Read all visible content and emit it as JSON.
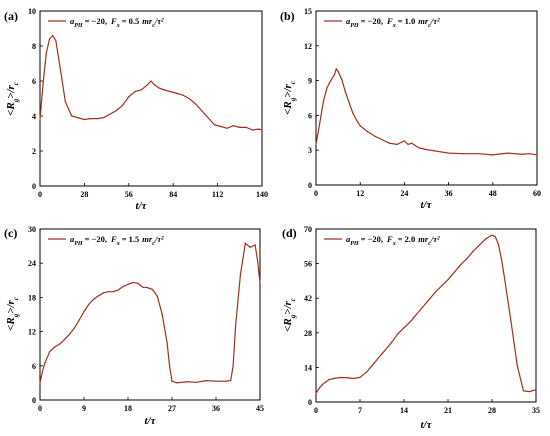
{
  "series_color": "#a0311f",
  "chart_data": [
    {
      "type": "line",
      "panel_label": "(a)",
      "legend": "aPH = −20, Fx = 0.5 mrc/τ²",
      "legend_parts": {
        "a_sub": "PH",
        "a_val": "= −20,",
        "f_sub": "x",
        "f_val": "= 0.5",
        "unit": "mr",
        "unit_sub": "c",
        "unit_tail": "/τ²"
      },
      "xlabel": "t/τ",
      "ylabel": "<Rg>/rc",
      "xlim": [
        0,
        140
      ],
      "ylim": [
        0,
        10
      ],
      "xticks": [
        0,
        28,
        56,
        84,
        112,
        140
      ],
      "yticks": [
        0,
        2,
        4,
        6,
        8,
        10
      ],
      "x": [
        0,
        2,
        4,
        6,
        8,
        10,
        13,
        16,
        20,
        24,
        28,
        32,
        36,
        40,
        44,
        48,
        52,
        56,
        60,
        64,
        68,
        70,
        72,
        75,
        78,
        82,
        86,
        90,
        94,
        98,
        102,
        106,
        110,
        114,
        118,
        122,
        126,
        130,
        134,
        138,
        140
      ],
      "y": [
        3.8,
        5.9,
        7.6,
        8.4,
        8.6,
        8.3,
        6.6,
        4.8,
        4.0,
        3.9,
        3.8,
        3.85,
        3.85,
        3.9,
        4.1,
        4.3,
        4.6,
        5.1,
        5.4,
        5.5,
        5.8,
        6.0,
        5.8,
        5.6,
        5.5,
        5.4,
        5.3,
        5.2,
        5.0,
        4.7,
        4.3,
        3.9,
        3.5,
        3.4,
        3.3,
        3.45,
        3.35,
        3.35,
        3.2,
        3.25,
        3.2
      ]
    },
    {
      "type": "line",
      "panel_label": "(b)",
      "legend": "aPH = −20, Fx = 1.0 mrc/τ²",
      "legend_parts": {
        "a_sub": "PH",
        "a_val": "= −20,",
        "f_sub": "x",
        "f_val": "= 1.0",
        "unit": "mr",
        "unit_sub": "c",
        "unit_tail": "/τ²"
      },
      "xlabel": "t/τ",
      "ylabel": "<Rg>/rc",
      "xlim": [
        0,
        60
      ],
      "ylim": [
        0,
        15
      ],
      "xticks": [
        0,
        12,
        24,
        36,
        48,
        60
      ],
      "yticks": [
        0,
        3,
        6,
        9,
        12,
        15
      ],
      "x": [
        0,
        0.5,
        1,
        2,
        3,
        4,
        5,
        5.5,
        6,
        7,
        8,
        9,
        10,
        11,
        12,
        14,
        16,
        18,
        20,
        22,
        24,
        25,
        26,
        28,
        30,
        32,
        34,
        36,
        40,
        44,
        48,
        52,
        56,
        58,
        60
      ],
      "y": [
        3.5,
        4.4,
        5.3,
        7.2,
        8.4,
        9.0,
        9.5,
        10.0,
        9.8,
        9.1,
        8.0,
        7.1,
        6.2,
        5.6,
        5.1,
        4.6,
        4.2,
        3.9,
        3.6,
        3.5,
        3.8,
        3.5,
        3.6,
        3.2,
        3.05,
        2.95,
        2.85,
        2.75,
        2.7,
        2.7,
        2.6,
        2.75,
        2.65,
        2.7,
        2.6
      ]
    },
    {
      "type": "line",
      "panel_label": "(c)",
      "legend": "aPH = −20, Fx = 1.5 mrc/τ²",
      "legend_parts": {
        "a_sub": "PH",
        "a_val": "= −20,",
        "f_sub": "x",
        "f_val": "= 1.5",
        "unit": "mr",
        "unit_sub": "c",
        "unit_tail": "/τ²"
      },
      "xlabel": "t/τ",
      "ylabel": "<Rg>/rc",
      "xlim": [
        0,
        45
      ],
      "ylim": [
        0,
        30
      ],
      "xticks": [
        0,
        9,
        18,
        27,
        36,
        45
      ],
      "yticks": [
        0,
        6,
        12,
        18,
        24,
        30
      ],
      "x": [
        0,
        0.5,
        1,
        2,
        3,
        4,
        5,
        6,
        7,
        8,
        9,
        10,
        11,
        12,
        13,
        14,
        15,
        16,
        17,
        18,
        19,
        20,
        21,
        22,
        23,
        24,
        25,
        26,
        26.5,
        27,
        28,
        30,
        32,
        34,
        36,
        38,
        39,
        39.5,
        40,
        41,
        42,
        43,
        44,
        44.5,
        45
      ],
      "y": [
        3.0,
        5.0,
        6.5,
        8.5,
        9.3,
        9.8,
        10.6,
        11.5,
        12.6,
        14.0,
        15.5,
        16.8,
        17.7,
        18.3,
        18.8,
        19.0,
        19.0,
        19.3,
        19.9,
        20.3,
        20.6,
        20.5,
        19.8,
        19.7,
        19.4,
        18.2,
        15.0,
        10.0,
        6.0,
        3.3,
        3.0,
        3.2,
        3.1,
        3.4,
        3.3,
        3.3,
        3.4,
        6.0,
        13.0,
        22.0,
        27.5,
        26.8,
        27.2,
        24.5,
        20.5
      ]
    },
    {
      "type": "line",
      "panel_label": "(d)",
      "legend": "aPH = −20, Fx = 2.0 mrc/τ²",
      "legend_parts": {
        "a_sub": "PH",
        "a_val": "= −20,",
        "f_sub": "x",
        "f_val": "= 2.0",
        "unit": "mr",
        "unit_sub": "c",
        "unit_tail": "/τ²"
      },
      "xlabel": "t/τ",
      "ylabel": "<Rg>/rc",
      "xlim": [
        0,
        35
      ],
      "ylim": [
        0,
        70
      ],
      "xticks": [
        0,
        7,
        14,
        21,
        28,
        35
      ],
      "yticks": [
        0,
        14,
        28,
        42,
        56,
        70
      ],
      "x": [
        0,
        0.5,
        1,
        2,
        3,
        4,
        5,
        6,
        7,
        8,
        9,
        10,
        11,
        12,
        13,
        14,
        15,
        16,
        17,
        18,
        19,
        20,
        21,
        22,
        23,
        24,
        25,
        26,
        27,
        28,
        28.5,
        29,
        29.5,
        30,
        31,
        32,
        33,
        34,
        35
      ],
      "y": [
        3.5,
        5.5,
        7.0,
        9.0,
        9.6,
        9.9,
        9.8,
        9.5,
        10.0,
        12.0,
        15.0,
        18.0,
        21.0,
        24.0,
        27.5,
        30.0,
        32.5,
        35.5,
        38.5,
        41.5,
        44.5,
        47.0,
        49.5,
        52.5,
        55.5,
        58.0,
        61.0,
        63.5,
        66.0,
        67.5,
        67.0,
        64.0,
        58.0,
        50.0,
        33.0,
        15.0,
        4.5,
        4.2,
        5.0
      ]
    }
  ]
}
